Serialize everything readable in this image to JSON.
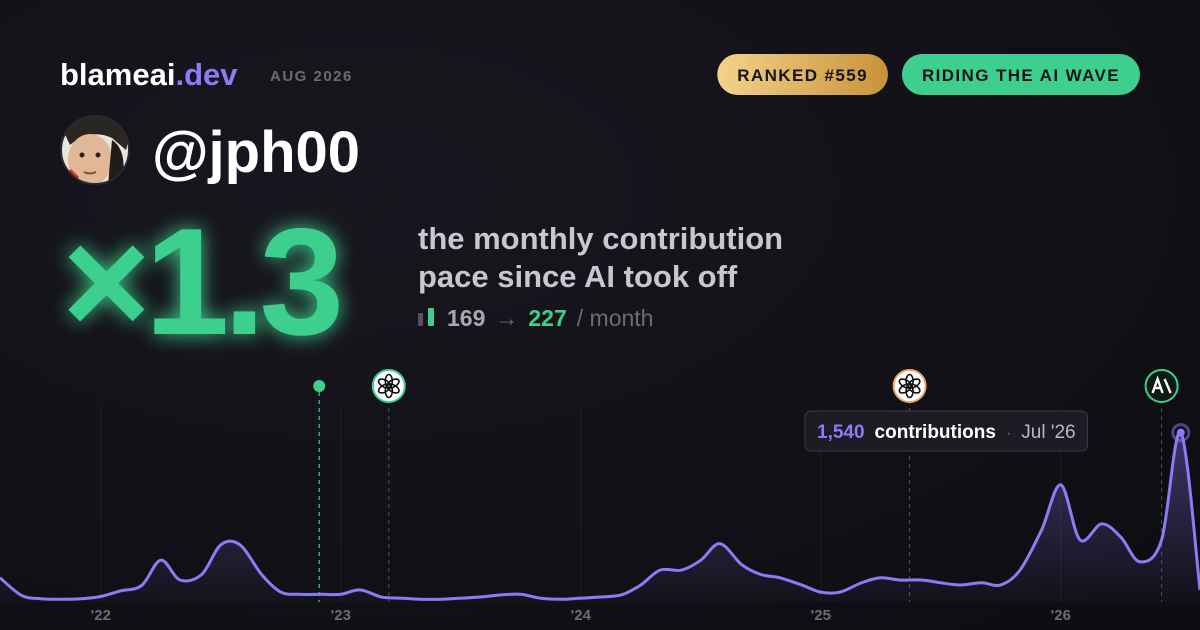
{
  "header": {
    "brand": "blameai",
    "brand_tld": ".dev",
    "period": "AUG 2026",
    "badges": [
      {
        "text": "RANKED #559",
        "style": "gold"
      },
      {
        "text": "RIDING THE AI WAVE",
        "style": "green"
      }
    ]
  },
  "profile": {
    "handle": "@jph00"
  },
  "headline": {
    "multiplier": 1.3,
    "multiplier_label": "×1.3",
    "caption": [
      "the monthly contribution",
      "pace since AI took off"
    ],
    "before": 169,
    "arrow": "→",
    "after": 227,
    "unit": "/ month"
  },
  "chart_data": {
    "type": "line",
    "x": [
      2021.58,
      2021.67,
      2021.75,
      2021.83,
      2021.92,
      2022,
      2022.08,
      2022.17,
      2022.25,
      2022.33,
      2022.42,
      2022.5,
      2022.58,
      2022.67,
      2022.75,
      2022.83,
      2022.92,
      2023,
      2023.08,
      2023.17,
      2023.25,
      2023.33,
      2023.42,
      2023.5,
      2023.58,
      2023.67,
      2023.75,
      2023.83,
      2023.92,
      2024,
      2024.08,
      2024.17,
      2024.25,
      2024.33,
      2024.42,
      2024.5,
      2024.58,
      2024.67,
      2024.75,
      2024.83,
      2024.92,
      2025,
      2025.08,
      2025.17,
      2025.25,
      2025.33,
      2025.42,
      2025.5,
      2025.58,
      2025.67,
      2025.75,
      2025.83,
      2025.92,
      2026,
      2026.08,
      2026.17,
      2026.25,
      2026.33,
      2026.42,
      2026.5,
      2026.58
    ],
    "series": [
      {
        "color": "#8b7cf6",
        "values": [
          220,
          60,
          30,
          25,
          30,
          50,
          100,
          150,
          380,
          200,
          250,
          520,
          520,
          250,
          90,
          70,
          70,
          70,
          110,
          45,
          35,
          25,
          25,
          35,
          45,
          65,
          70,
          35,
          25,
          35,
          45,
          65,
          155,
          290,
          290,
          380,
          530,
          340,
          250,
          220,
          155,
          90,
          90,
          175,
          220,
          200,
          200,
          175,
          155,
          175,
          155,
          290,
          655,
          1065,
          565,
          710,
          590,
          365,
          565,
          1540,
          110
        ]
      }
    ],
    "xlim": [
      2021.58,
      2026.58
    ],
    "ylim": [
      0,
      1600
    ],
    "xticks": [
      {
        "value": 2022,
        "label": "'22"
      },
      {
        "value": 2023,
        "label": "'23"
      },
      {
        "value": 2024,
        "label": "'24"
      },
      {
        "value": 2025,
        "label": "'25"
      },
      {
        "value": 2026,
        "label": "'26"
      }
    ],
    "grid": true,
    "events": [
      {
        "x": 2022.91,
        "icon": "dot",
        "color": "#3ecf8e"
      },
      {
        "x": 2023.2,
        "icon": "openai",
        "color": "#3ecf8e"
      },
      {
        "x": 2025.37,
        "icon": "openai",
        "color": "#e8a86a"
      },
      {
        "x": 2026.42,
        "icon": "anthropic",
        "color": "#3ecf8e"
      }
    ],
    "tooltip": {
      "value": 1540,
      "value_label": "1,540",
      "text": "contributions",
      "sep": "·",
      "date": "Jul '26"
    }
  }
}
